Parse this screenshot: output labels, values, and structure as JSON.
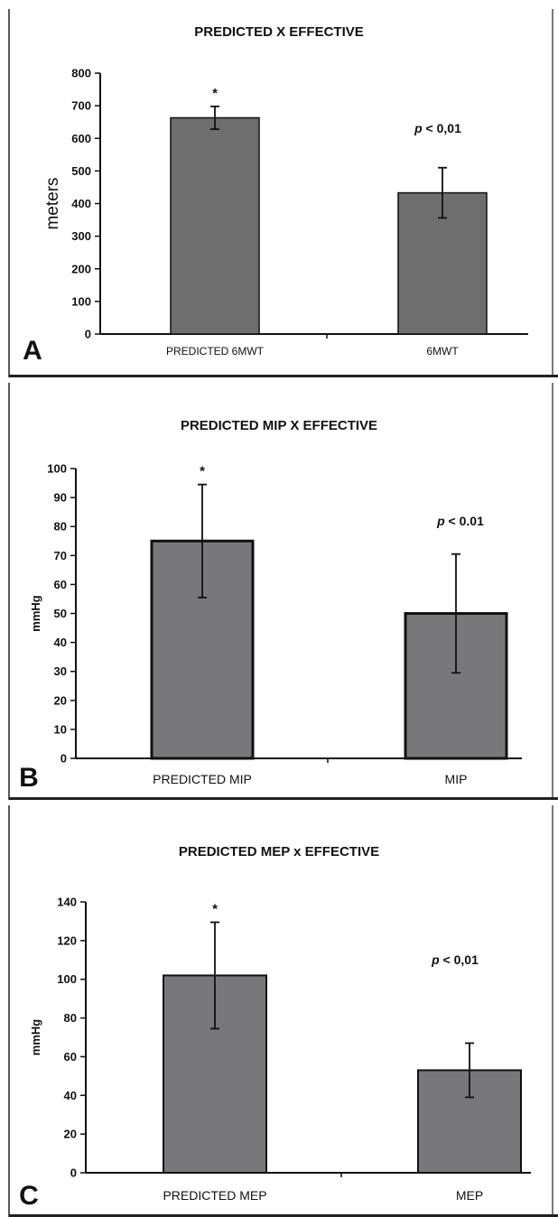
{
  "chart_data": [
    {
      "type": "bar",
      "panel_letter": "A",
      "title": "PREDICTED X EFFECTIVE",
      "xlabel": "",
      "ylabel": "meters",
      "ylim": [
        0,
        800
      ],
      "yticks": [
        "0",
        "100",
        "200",
        "300",
        "400",
        "500",
        "600",
        "700",
        "800"
      ],
      "categories": [
        "PREDICTED 6MWT",
        "6MWT"
      ],
      "values": [
        663,
        433
      ],
      "error": [
        35,
        77
      ],
      "significance_marker": "*",
      "p_label": "p",
      "p_value_text": " < 0,01",
      "bar_color": "#6e6e6e",
      "grid": false
    },
    {
      "type": "bar",
      "panel_letter": "B",
      "title": "PREDICTED MIP X EFFECTIVE",
      "xlabel": "",
      "ylabel": "mmHg",
      "ylim": [
        0,
        100
      ],
      "yticks": [
        "0",
        "10",
        "20",
        "30",
        "40",
        "50",
        "60",
        "70",
        "80",
        "90",
        "100"
      ],
      "categories": [
        "PREDICTED MIP",
        "MIP"
      ],
      "values": [
        75,
        50
      ],
      "error": [
        19.5,
        20.5
      ],
      "significance_marker": "*",
      "p_label": "p",
      "p_value_text": " < 0.01",
      "bar_color": "#77777c",
      "grid": false
    },
    {
      "type": "bar",
      "panel_letter": "C",
      "title": "PREDICTED MEP x EFFECTIVE",
      "xlabel": "",
      "ylabel": "mmHg",
      "ylim": [
        0,
        140
      ],
      "yticks": [
        "0",
        "20",
        "40",
        "60",
        "80",
        "100",
        "120",
        "140"
      ],
      "categories": [
        "PREDICTED MEP",
        "MEP"
      ],
      "values": [
        102,
        53
      ],
      "error": [
        27.5,
        14
      ],
      "significance_marker": "*",
      "p_label": "p",
      "p_value_text": " < 0,01",
      "bar_color": "#77777c",
      "grid": false
    }
  ]
}
